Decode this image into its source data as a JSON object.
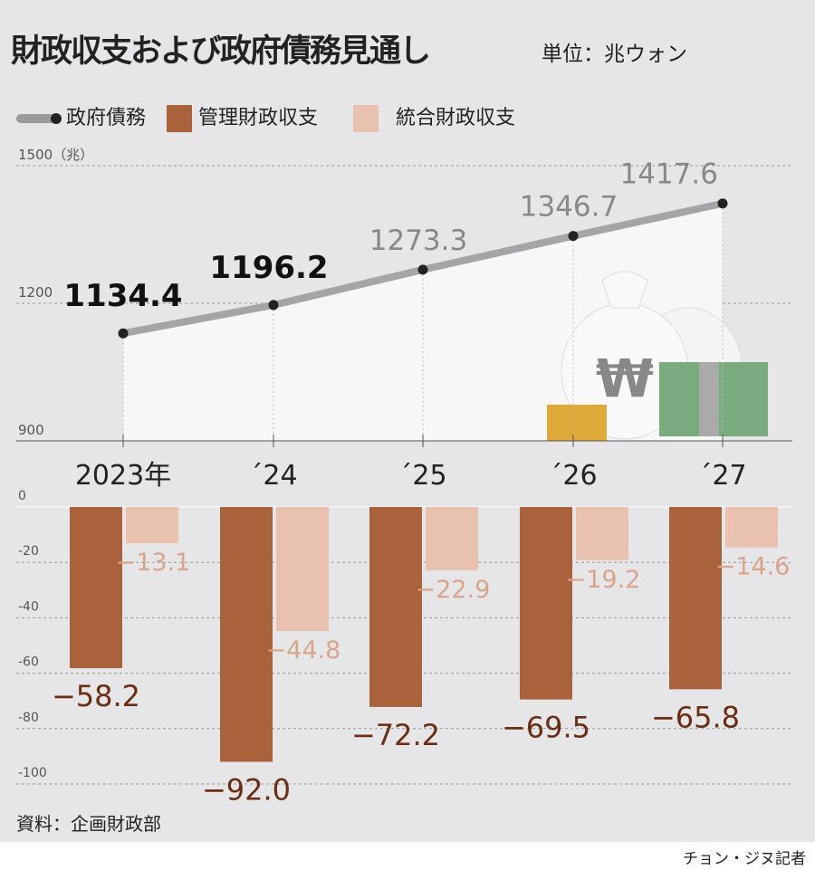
{
  "title": "財政収支および政府債務見通し",
  "unit": "単位：兆ウォン",
  "source": "資料：企画財政部",
  "credit": "チョン・ジヌ記者",
  "legend": [
    {
      "label": "政府債務",
      "color": "#9a9a9c"
    },
    {
      "label": "管理財政収支",
      "color": "#a9623b"
    },
    {
      "label": "統合財政収支",
      "color": "#e8c2ae"
    }
  ],
  "chart_data": [
    {
      "type": "line",
      "categories": [
        "2023年",
        "´24",
        "´25",
        "´26",
        "´27"
      ],
      "series": [
        {
          "name": "政府債務",
          "values": [
            1134.4,
            1196.2,
            1273.3,
            1346.7,
            1417.6
          ]
        }
      ],
      "value_labels": [
        "1134.4",
        "1196.2",
        "1273.3",
        "1346.7",
        "1417.6"
      ],
      "ylim": [
        900,
        1500
      ],
      "yticks": [
        "900",
        "1200",
        "1500（兆）"
      ],
      "grid": true
    },
    {
      "type": "bar",
      "categories": [
        "2023年",
        "´24",
        "´25",
        "´26",
        "´27"
      ],
      "series": [
        {
          "name": "管理財政収支",
          "values": [
            -58.2,
            -92.0,
            -72.2,
            -69.5,
            -65.8
          ],
          "labels": [
            "−58.2",
            "−92.0",
            "−72.2",
            "−69.5",
            "−65.8"
          ]
        },
        {
          "name": "統合財政収支",
          "values": [
            -13.1,
            -44.8,
            -22.9,
            -19.2,
            -14.6
          ],
          "labels": [
            "−13.1",
            "−44.8",
            "−22.9",
            "−19.2",
            "−14.6"
          ]
        }
      ],
      "ylim": [
        -100,
        0
      ],
      "yticks": [
        "0",
        "-20",
        "-40",
        "-60",
        "-80",
        "-100"
      ],
      "grid": true
    }
  ]
}
